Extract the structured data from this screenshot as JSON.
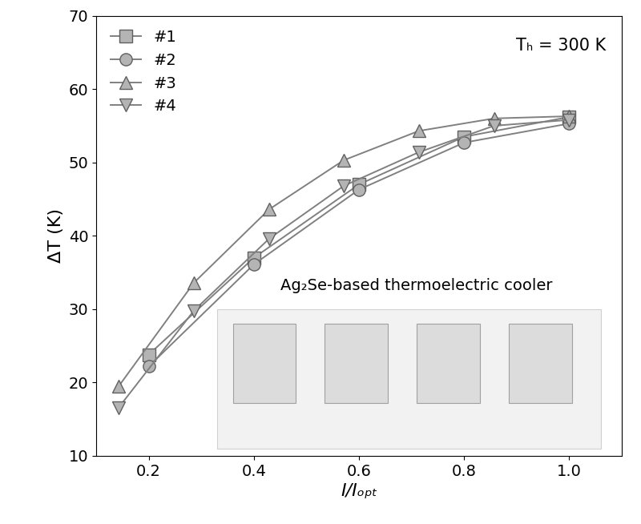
{
  "chart_data": {
    "type": "line",
    "x_label": "I/Iₒₚₜ",
    "y_label": "ΔT (K)",
    "annotations": [
      "Tₕ = 300 K",
      "Ag₂Se-based thermoelectric cooler"
    ],
    "series": [
      {
        "name": "#1",
        "color": "#808080",
        "marker": "square",
        "x": [
          0.2,
          0.4,
          0.6,
          0.8,
          1.0
        ],
        "values": [
          23.8,
          37.0,
          47.0,
          53.5,
          56.2
        ]
      },
      {
        "name": "#2",
        "color": "#808080",
        "marker": "circle",
        "x": [
          0.2,
          0.4,
          0.6,
          0.8,
          1.0
        ],
        "values": [
          22.2,
          36.1,
          46.3,
          52.7,
          55.3
        ]
      },
      {
        "name": "#3",
        "color": "#808080",
        "marker": "triangle_up",
        "x": [
          0.143,
          0.286,
          0.429,
          0.571,
          0.714,
          0.857,
          1.0
        ],
        "values": [
          19.5,
          33.6,
          43.6,
          50.3,
          54.3,
          56.0,
          56.3
        ]
      },
      {
        "name": "#4",
        "color": "#808080",
        "marker": "triangle_down",
        "x": [
          0.143,
          0.286,
          0.429,
          0.571,
          0.714,
          0.857,
          1.0
        ],
        "values": [
          16.6,
          29.8,
          39.6,
          46.8,
          51.4,
          55.0,
          55.8
        ]
      }
    ],
    "xlim": [
      0.1,
      1.1
    ],
    "xticks": [
      0.2,
      0.4,
      0.6,
      0.8,
      1.0
    ],
    "ylim": [
      10,
      70
    ],
    "yticks": [
      10,
      20,
      30,
      40,
      50,
      60,
      70
    ],
    "legend": "upper left",
    "grid": false
  }
}
